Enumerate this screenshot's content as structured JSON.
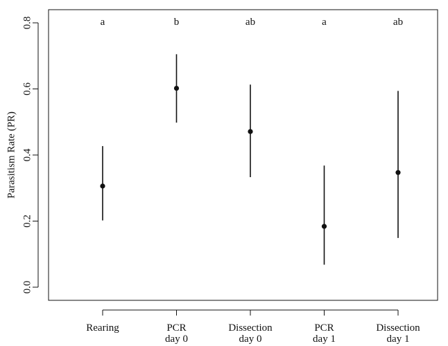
{
  "chart_data": {
    "type": "scatter",
    "ylabel": "Parasitism Rate (PR)",
    "xlabel": "",
    "title": "",
    "ylim": [
      0.0,
      0.8
    ],
    "yticks": [
      "0.0",
      "0.2",
      "0.4",
      "0.6",
      "0.8"
    ],
    "categories": [
      [
        "Rearing"
      ],
      [
        "PCR",
        "day 0"
      ],
      [
        "Dissection",
        "day 0"
      ],
      [
        "PCR",
        "day 1"
      ],
      [
        "Dissection",
        "day 1"
      ]
    ],
    "values": [
      0.306,
      0.602,
      0.471,
      0.184,
      0.347
    ],
    "ci_lower": [
      0.202,
      0.498,
      0.333,
      0.068,
      0.149
    ],
    "ci_upper": [
      0.427,
      0.705,
      0.613,
      0.368,
      0.594
    ],
    "significance_letters": [
      "a",
      "b",
      "ab",
      "a",
      "ab"
    ],
    "grid": false,
    "colors": {
      "point": "#111111",
      "line": "#111111",
      "axis": "#111111"
    }
  }
}
